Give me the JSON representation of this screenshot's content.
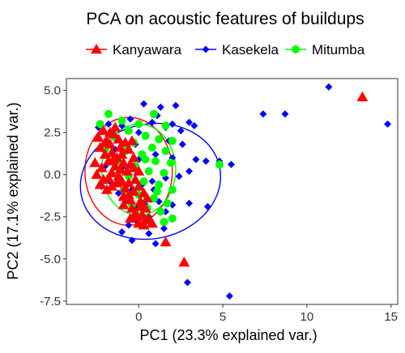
{
  "chart_data": {
    "type": "scatter",
    "title": "PCA on acoustic features of buildups",
    "xlabel": "PC1 (23.3% explained var.)",
    "ylabel": "PC2 (17.1% explained var.)",
    "xlim": [
      -4.3,
      15.4
    ],
    "ylim": [
      -7.7,
      5.7
    ],
    "xticks": [
      0,
      5,
      10,
      15
    ],
    "xtick_labels": [
      "0",
      "5",
      "10",
      "15"
    ],
    "yticks": [
      5.0,
      2.5,
      0.0,
      -2.5,
      -5.0,
      -7.5
    ],
    "ytick_labels": [
      "5.0",
      "2.5",
      "0.0",
      "-2.5",
      "-5.0",
      "-7.5"
    ],
    "grid": false,
    "legend_position": "top",
    "series": [
      {
        "name": "Kanyawara",
        "color": "#ff0000",
        "marker": "triangle",
        "ellipse": {
          "cx": -0.6,
          "cy": 0.2,
          "rx": 2.6,
          "ry": 3.2,
          "angle": 0
        },
        "points": [
          [
            -2.4,
            2.2
          ],
          [
            -2.1,
            2.6
          ],
          [
            -2.3,
            1.6
          ],
          [
            -2.0,
            1.2
          ],
          [
            -1.8,
            0.8
          ],
          [
            -2.2,
            0.4
          ],
          [
            -2.5,
            0.0
          ],
          [
            -2.1,
            -0.3
          ],
          [
            -1.9,
            2.0
          ],
          [
            -1.7,
            1.8
          ],
          [
            -1.6,
            1.3
          ],
          [
            -1.5,
            0.9
          ],
          [
            -1.4,
            0.5
          ],
          [
            -1.6,
            0.1
          ],
          [
            -1.8,
            -0.2
          ],
          [
            -1.3,
            -0.5
          ],
          [
            -1.5,
            2.4
          ],
          [
            -1.2,
            2.1
          ],
          [
            -1.1,
            1.6
          ],
          [
            -1.0,
            1.2
          ],
          [
            -0.9,
            0.7
          ],
          [
            -1.1,
            0.3
          ],
          [
            -1.2,
            -0.1
          ],
          [
            -1.0,
            -0.4
          ],
          [
            -0.8,
            -0.8
          ],
          [
            -0.6,
            -1.2
          ],
          [
            -0.5,
            -1.5
          ],
          [
            -0.9,
            -1.8
          ],
          [
            -0.4,
            -2.0
          ],
          [
            -0.2,
            -2.3
          ],
          [
            -0.5,
            -2.6
          ],
          [
            0.0,
            -2.9
          ],
          [
            0.2,
            -2.4
          ],
          [
            0.4,
            -2.0
          ],
          [
            0.1,
            -1.6
          ],
          [
            -0.3,
            -1.0
          ],
          [
            -0.7,
            0.2
          ],
          [
            -0.5,
            0.6
          ],
          [
            -0.3,
            1.0
          ],
          [
            -0.6,
            1.5
          ],
          [
            -0.2,
            -0.3
          ],
          [
            0.0,
            -0.7
          ],
          [
            0.3,
            -1.1
          ],
          [
            0.5,
            -1.4
          ],
          [
            0.6,
            -2.6
          ],
          [
            0.8,
            -2.9
          ],
          [
            0.3,
            -3.0
          ],
          [
            -0.1,
            -2.5
          ],
          [
            -2.6,
            0.7
          ],
          [
            -2.3,
            -0.6
          ],
          [
            -1.9,
            -0.9
          ],
          [
            -1.6,
            -0.7
          ],
          [
            -1.3,
            1.0
          ],
          [
            -0.8,
            1.9
          ],
          [
            -0.4,
            2.0
          ],
          [
            -1.4,
            2.8
          ],
          [
            -1.7,
            2.5
          ],
          [
            -2.0,
            1.9
          ],
          [
            -0.9,
            -1.3
          ],
          [
            -0.6,
            -0.5
          ],
          [
            0.1,
            -1.9
          ],
          [
            0.4,
            -2.7
          ],
          [
            -0.3,
            0.4
          ],
          [
            0.0,
            0.2
          ],
          [
            1.6,
            -4.0
          ],
          [
            2.7,
            -5.2
          ],
          [
            13.3,
            4.6
          ]
        ]
      },
      {
        "name": "Kasekela",
        "color": "#0000ff",
        "marker": "diamond",
        "ellipse": {
          "cx": 0.7,
          "cy": -0.4,
          "rx": 4.2,
          "ry": 3.4,
          "angle": -12
        },
        "points": [
          [
            0.3,
            4.2
          ],
          [
            1.3,
            4.0
          ],
          [
            2.2,
            4.1
          ],
          [
            1.1,
            3.5
          ],
          [
            2.0,
            3.0
          ],
          [
            3.0,
            3.1
          ],
          [
            3.3,
            2.9
          ],
          [
            -0.5,
            3.3
          ],
          [
            0.8,
            3.1
          ],
          [
            1.6,
            2.8
          ],
          [
            2.5,
            2.6
          ],
          [
            0.0,
            2.5
          ],
          [
            -1.0,
            2.9
          ],
          [
            -1.8,
            3.0
          ],
          [
            -2.4,
            2.8
          ],
          [
            -0.2,
            1.8
          ],
          [
            1.0,
            1.2
          ],
          [
            2.0,
            1.0
          ],
          [
            3.4,
            0.9
          ],
          [
            4.0,
            0.8
          ],
          [
            4.8,
            0.8
          ],
          [
            5.5,
            0.6
          ],
          [
            3.0,
            0.2
          ],
          [
            2.4,
            -0.1
          ],
          [
            1.6,
            -0.2
          ],
          [
            0.8,
            -0.4
          ],
          [
            0.2,
            -0.6
          ],
          [
            -0.4,
            -0.9
          ],
          [
            -1.2,
            -1.1
          ],
          [
            -1.6,
            -0.5
          ],
          [
            -2.2,
            -0.7
          ],
          [
            -0.8,
            -1.5
          ],
          [
            0.4,
            -1.8
          ],
          [
            1.2,
            -1.6
          ],
          [
            2.0,
            -1.8
          ],
          [
            3.0,
            -1.7
          ],
          [
            4.1,
            -1.9
          ],
          [
            1.6,
            -2.2
          ],
          [
            0.6,
            -2.5
          ],
          [
            -0.2,
            -2.7
          ],
          [
            -0.6,
            -3.0
          ],
          [
            -1.0,
            -3.4
          ],
          [
            -0.4,
            -3.9
          ],
          [
            0.6,
            -3.5
          ],
          [
            1.0,
            -4.1
          ],
          [
            1.5,
            -3.2
          ],
          [
            -0.1,
            -2.0
          ],
          [
            0.9,
            -0.9
          ],
          [
            2.6,
            1.8
          ],
          [
            1.8,
            2.0
          ],
          [
            -1.4,
            1.5
          ],
          [
            -2.0,
            0.5
          ],
          [
            -1.0,
            0.4
          ],
          [
            0.0,
            0.9
          ],
          [
            2.9,
            -6.4
          ],
          [
            5.4,
            -7.2
          ],
          [
            7.4,
            3.6
          ],
          [
            8.7,
            3.6
          ],
          [
            11.3,
            5.2
          ],
          [
            14.8,
            3.0
          ]
        ]
      },
      {
        "name": "Mitumba",
        "color": "#00ff00",
        "marker": "circle",
        "ellipse": {
          "cx": 0.0,
          "cy": 0.3,
          "rx": 2.2,
          "ry": 2.7,
          "angle": 0
        },
        "points": [
          [
            -1.8,
            3.6
          ],
          [
            -2.3,
            3.0
          ],
          [
            -1.0,
            3.2
          ],
          [
            0.0,
            3.0
          ],
          [
            0.9,
            3.6
          ],
          [
            1.6,
            2.9
          ],
          [
            -0.6,
            2.6
          ],
          [
            0.4,
            2.3
          ],
          [
            1.2,
            2.1
          ],
          [
            2.0,
            2.0
          ],
          [
            -1.4,
            2.2
          ],
          [
            -0.3,
            1.9
          ],
          [
            0.8,
            1.6
          ],
          [
            1.6,
            1.4
          ],
          [
            -0.8,
            1.4
          ],
          [
            0.2,
            1.2
          ],
          [
            1.0,
            0.8
          ],
          [
            1.9,
            0.7
          ],
          [
            -1.2,
            0.8
          ],
          [
            -0.2,
            0.5
          ],
          [
            0.6,
            0.2
          ],
          [
            1.5,
            0.1
          ],
          [
            -0.6,
            -0.1
          ],
          [
            0.3,
            -0.4
          ],
          [
            1.2,
            -0.6
          ],
          [
            2.0,
            -0.9
          ],
          [
            -0.9,
            -0.9
          ],
          [
            0.0,
            -1.2
          ],
          [
            0.9,
            -1.4
          ],
          [
            1.7,
            -1.7
          ],
          [
            -0.4,
            -1.8
          ],
          [
            0.5,
            -2.0
          ],
          [
            1.3,
            -2.2
          ],
          [
            2.0,
            -2.6
          ],
          [
            1.5,
            -2.8
          ],
          [
            -0.1,
            -2.4
          ],
          [
            1.1,
            -1.0
          ],
          [
            0.4,
            0.9
          ],
          [
            4.8,
            0.6
          ],
          [
            -2.0,
            1.5
          ]
        ]
      }
    ]
  }
}
